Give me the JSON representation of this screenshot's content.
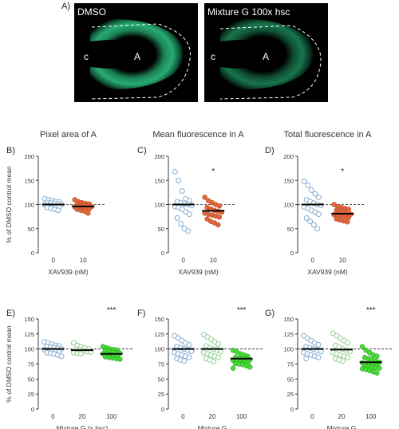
{
  "figure": {
    "panel_a_label": "A)",
    "images": [
      {
        "title": "DMSO",
        "label_c": "c",
        "label_a": "A"
      },
      {
        "title": "Mixture G 100x hsc",
        "label_c": "c",
        "label_a": "A"
      }
    ]
  },
  "colors": {
    "control_open": "#8fb3d6",
    "xav": "#e0663a",
    "g20": "#9cd39c",
    "g100": "#44dd33"
  },
  "chart_data": [
    {
      "id": "B",
      "panel_label": "B)",
      "type": "scatter",
      "title": "Pixel area of A",
      "ylabel": "% of DMSO control mean",
      "xlabel": "XAV939 (nM)",
      "ylim": [
        0,
        200
      ],
      "yticks": [
        0,
        50,
        100,
        150,
        200
      ],
      "grid": false,
      "categories": [
        "0",
        "10"
      ],
      "series": [
        {
          "values": [
            112,
            110,
            108,
            106,
            105,
            104,
            103,
            102,
            101,
            100,
            99,
            98,
            97,
            96,
            95,
            94,
            92,
            90,
            88
          ],
          "mean": 100,
          "color": "#8fb3d6",
          "filled": false
        },
        {
          "values": [
            110,
            106,
            104,
            102,
            101,
            100,
            99,
            98,
            97,
            96,
            95,
            94,
            93,
            92,
            91,
            90,
            88,
            86,
            82
          ],
          "mean": 96,
          "color": "#e0663a",
          "filled": true
        }
      ],
      "significance": [
        "",
        ""
      ]
    },
    {
      "id": "C",
      "panel_label": "C)",
      "type": "scatter",
      "title": "Mean fluorescence in A",
      "ylabel": "",
      "xlabel": "XAV939 (nM)",
      "ylim": [
        0,
        200
      ],
      "yticks": [
        0,
        50,
        100,
        150,
        200
      ],
      "grid": false,
      "categories": [
        "0",
        "10"
      ],
      "series": [
        {
          "values": [
            168,
            150,
            128,
            112,
            108,
            106,
            104,
            102,
            100,
            98,
            96,
            94,
            90,
            85,
            80,
            72,
            60,
            50,
            45
          ],
          "mean": 100,
          "color": "#8fb3d6",
          "filled": false
        },
        {
          "values": [
            115,
            108,
            104,
            100,
            97,
            94,
            91,
            88,
            86,
            84,
            82,
            80,
            78,
            76,
            74,
            70,
            65,
            62,
            58
          ],
          "mean": 87,
          "color": "#e0663a",
          "filled": true
        }
      ],
      "significance": [
        "",
        "*"
      ]
    },
    {
      "id": "D",
      "panel_label": "D)",
      "type": "scatter",
      "title": "Total fluorescence in A",
      "ylabel": "",
      "xlabel": "XAV939 (nM)",
      "ylim": [
        0,
        200
      ],
      "yticks": [
        0,
        50,
        100,
        150,
        200
      ],
      "grid": false,
      "categories": [
        "0",
        "10"
      ],
      "series": [
        {
          "values": [
            148,
            140,
            130,
            122,
            115,
            110,
            106,
            103,
            100,
            98,
            95,
            92,
            88,
            84,
            80,
            72,
            65,
            58,
            50
          ],
          "mean": 100,
          "color": "#8fb3d6",
          "filled": false
        },
        {
          "values": [
            100,
            96,
            94,
            92,
            90,
            88,
            86,
            84,
            82,
            80,
            79,
            78,
            77,
            75,
            73,
            70,
            68,
            66,
            64
          ],
          "mean": 81,
          "color": "#e0663a",
          "filled": true
        }
      ],
      "significance": [
        "",
        "*"
      ]
    },
    {
      "id": "E",
      "panel_label": "E)",
      "type": "scatter",
      "title": "",
      "ylabel": "% of DMSO control mean",
      "xlabel": "Mixture G (x hsc)",
      "ylim": [
        0,
        150
      ],
      "yticks": [
        0,
        25,
        50,
        75,
        100,
        125,
        150
      ],
      "grid": false,
      "categories": [
        "0",
        "20",
        "100"
      ],
      "series": [
        {
          "values": [
            112,
            110,
            108,
            106,
            105,
            104,
            103,
            102,
            101,
            100,
            99,
            98,
            97,
            96,
            95,
            94,
            93,
            92,
            90,
            88
          ],
          "mean": 100,
          "color": "#8fb3d6",
          "filled": false
        },
        {
          "values": [
            110,
            106,
            104,
            102,
            100,
            99,
            98,
            97,
            96,
            95,
            94,
            93,
            92
          ],
          "mean": 98,
          "color": "#9cd39c",
          "filled": false
        },
        {
          "values": [
            104,
            102,
            100,
            99,
            98,
            97,
            96,
            95,
            94,
            93,
            92,
            91,
            90,
            89,
            88,
            87,
            86,
            85,
            84,
            83
          ],
          "mean": 92,
          "color": "#44dd33",
          "filled": true
        }
      ],
      "significance": [
        "",
        "",
        "***"
      ]
    },
    {
      "id": "F",
      "panel_label": "F)",
      "type": "scatter",
      "title": "",
      "ylabel": "",
      "xlabel": "Mixture G",
      "ylim": [
        0,
        150
      ],
      "yticks": [
        0,
        25,
        50,
        75,
        100,
        125,
        150
      ],
      "grid": false,
      "categories": [
        "0",
        "20",
        "100"
      ],
      "series": [
        {
          "values": [
            122,
            118,
            114,
            110,
            107,
            104,
            102,
            100,
            98,
            96,
            94,
            92,
            90,
            88,
            86,
            84,
            82,
            80
          ],
          "mean": 100,
          "color": "#8fb3d6",
          "filled": false
        },
        {
          "values": [
            124,
            120,
            116,
            112,
            108,
            105,
            102,
            100,
            98,
            96,
            94,
            92,
            90,
            88,
            86,
            84,
            82,
            79
          ],
          "mean": 100,
          "color": "#9cd39c",
          "filled": false
        },
        {
          "values": [
            98,
            95,
            92,
            90,
            88,
            86,
            85,
            84,
            83,
            82,
            81,
            80,
            79,
            78,
            77,
            76,
            75,
            74,
            72,
            70,
            68
          ],
          "mean": 84,
          "color": "#44dd33",
          "filled": true
        }
      ],
      "significance": [
        "",
        "",
        "***"
      ]
    },
    {
      "id": "G",
      "panel_label": "G)",
      "type": "scatter",
      "title": "",
      "ylabel": "",
      "xlabel": "Mixture G",
      "ylim": [
        0,
        150
      ],
      "yticks": [
        0,
        25,
        50,
        75,
        100,
        125,
        150
      ],
      "grid": false,
      "categories": [
        "0",
        "20",
        "100"
      ],
      "series": [
        {
          "values": [
            122,
            118,
            114,
            110,
            107,
            104,
            102,
            100,
            98,
            96,
            94,
            92,
            90,
            88,
            86,
            84
          ],
          "mean": 100,
          "color": "#8fb3d6",
          "filled": false
        },
        {
          "values": [
            126,
            122,
            118,
            114,
            110,
            106,
            103,
            100,
            98,
            96,
            94,
            92,
            90,
            88,
            86,
            84,
            82,
            80
          ],
          "mean": 99,
          "color": "#9cd39c",
          "filled": false
        },
        {
          "values": [
            104,
            98,
            94,
            90,
            88,
            86,
            84,
            82,
            80,
            78,
            77,
            76,
            75,
            74,
            73,
            72,
            71,
            70,
            69,
            68,
            67,
            66,
            64,
            62,
            60
          ],
          "mean": 78,
          "color": "#44dd33",
          "filled": true
        }
      ],
      "significance": [
        "",
        "",
        "***"
      ]
    }
  ]
}
